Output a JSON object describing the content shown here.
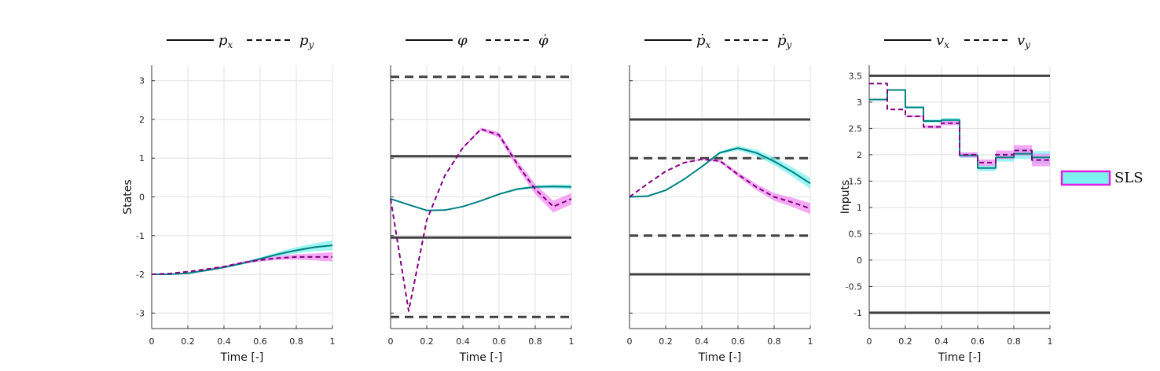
{
  "figure": {
    "band_label": "SLS",
    "colors": {
      "series_solid": "#008080",
      "series_dashed": "#800080",
      "band_solid": "#7ff0f0",
      "band_dashed": "#f28cf2",
      "constraint": "#404040",
      "legend_box_edge": "#e020e0"
    }
  },
  "chart_data": [
    {
      "type": "line",
      "legend": [
        {
          "label": "p_x",
          "style": "solid"
        },
        {
          "label": "p_y",
          "style": "dashed"
        }
      ],
      "xlabel": "Time [-]",
      "ylabel": "States",
      "xlim": [
        0,
        1
      ],
      "ylim": [
        -3.4,
        3.4
      ],
      "xticks": [
        0,
        0.2,
        0.4,
        0.6,
        0.8,
        1
      ],
      "xtick_labels": [
        "0",
        "0.2",
        "0.4",
        "0.6",
        "0.8",
        "1"
      ],
      "yticks": [
        3,
        2,
        1,
        0,
        -1,
        -2,
        -3
      ],
      "ytick_labels": [
        "3",
        "2",
        "1",
        "0",
        "-1",
        "-2",
        "-3"
      ],
      "grid": true,
      "series": [
        {
          "style": "solid",
          "x": [
            0,
            0.1,
            0.2,
            0.3,
            0.4,
            0.5,
            0.6,
            0.7,
            0.8,
            0.9,
            1.0
          ],
          "values": [
            -2.0,
            -2.0,
            -1.97,
            -1.9,
            -1.82,
            -1.72,
            -1.6,
            -1.48,
            -1.38,
            -1.3,
            -1.25
          ],
          "band": [
            0,
            0,
            0,
            0.01,
            0.02,
            0.03,
            0.04,
            0.06,
            0.08,
            0.1,
            0.13
          ]
        },
        {
          "style": "dashed",
          "x": [
            0,
            0.1,
            0.2,
            0.3,
            0.4,
            0.5,
            0.6,
            0.7,
            0.8,
            0.9,
            1.0
          ],
          "values": [
            -2.0,
            -1.98,
            -1.93,
            -1.87,
            -1.8,
            -1.7,
            -1.63,
            -1.58,
            -1.55,
            -1.55,
            -1.55
          ],
          "band": [
            0,
            0,
            0,
            0.01,
            0.02,
            0.03,
            0.04,
            0.05,
            0.07,
            0.09,
            0.12
          ]
        }
      ],
      "constraints": []
    },
    {
      "type": "line",
      "legend": [
        {
          "label": "φ",
          "style": "solid"
        },
        {
          "label": "φ̇",
          "style": "dashed"
        }
      ],
      "xlabel": "Time [-]",
      "ylabel": "",
      "xlim": [
        0,
        1
      ],
      "ylim": [
        -3.4,
        3.4
      ],
      "xticks": [
        0,
        0.2,
        0.4,
        0.6,
        0.8,
        1
      ],
      "xtick_labels": [
        "0",
        "0.2",
        "0.4",
        "0.6",
        "0.8",
        "1"
      ],
      "yticks": [
        3,
        2,
        1,
        0,
        -1,
        -2,
        -3
      ],
      "ytick_labels": [],
      "grid": true,
      "series": [
        {
          "style": "solid",
          "x": [
            0,
            0.1,
            0.2,
            0.3,
            0.4,
            0.5,
            0.6,
            0.7,
            0.8,
            0.9,
            1.0
          ],
          "values": [
            -0.05,
            -0.2,
            -0.35,
            -0.34,
            -0.25,
            -0.1,
            0.07,
            0.2,
            0.26,
            0.27,
            0.26
          ],
          "band": [
            0,
            0,
            0,
            0,
            0.01,
            0.01,
            0.02,
            0.03,
            0.04,
            0.05,
            0.06
          ]
        },
        {
          "style": "dashed",
          "x": [
            0,
            0.1,
            0.2,
            0.3,
            0.4,
            0.5,
            0.6,
            0.7,
            0.8,
            0.9,
            1.0
          ],
          "values": [
            -0.05,
            -2.95,
            -0.6,
            0.55,
            1.27,
            1.75,
            1.6,
            0.85,
            0.2,
            -0.25,
            -0.05
          ],
          "band": [
            0,
            0,
            0,
            0,
            0.02,
            0.04,
            0.07,
            0.1,
            0.13,
            0.15,
            0.15
          ]
        }
      ],
      "constraints": [
        {
          "y": 3.1,
          "style": "dashed"
        },
        {
          "y": 1.05,
          "style": "solid"
        },
        {
          "y": -1.05,
          "style": "solid"
        },
        {
          "y": -3.1,
          "style": "dashed"
        }
      ]
    },
    {
      "type": "line",
      "legend": [
        {
          "label": "ṗ_x",
          "style": "solid"
        },
        {
          "label": "ṗ_y",
          "style": "dashed"
        }
      ],
      "xlabel": "Time [-]",
      "ylabel": "",
      "xlim": [
        0,
        1
      ],
      "ylim": [
        -3.4,
        3.4
      ],
      "xticks": [
        0,
        0.2,
        0.4,
        0.6,
        0.8,
        1
      ],
      "xtick_labels": [
        "0",
        "0.2",
        "0.4",
        "0.6",
        "0.8",
        "1"
      ],
      "yticks": [
        3,
        2,
        1,
        0,
        -1,
        -2,
        -3
      ],
      "ytick_labels": [],
      "grid": true,
      "series": [
        {
          "style": "solid",
          "x": [
            0,
            0.1,
            0.2,
            0.3,
            0.4,
            0.5,
            0.6,
            0.7,
            0.8,
            0.9,
            1.0
          ],
          "values": [
            0.0,
            0.02,
            0.17,
            0.45,
            0.78,
            1.14,
            1.26,
            1.14,
            0.92,
            0.65,
            0.35
          ],
          "band": [
            0,
            0,
            0,
            0.01,
            0.02,
            0.04,
            0.06,
            0.08,
            0.1,
            0.12,
            0.14
          ]
        },
        {
          "style": "dashed",
          "x": [
            0,
            0.1,
            0.2,
            0.3,
            0.4,
            0.5,
            0.6,
            0.7,
            0.8,
            0.9,
            1.0
          ],
          "values": [
            0.0,
            0.34,
            0.66,
            0.88,
            0.97,
            0.93,
            0.58,
            0.26,
            0.0,
            -0.14,
            -0.3
          ],
          "band": [
            0,
            0,
            0,
            0.01,
            0.02,
            0.04,
            0.06,
            0.08,
            0.1,
            0.12,
            0.14
          ]
        }
      ],
      "constraints": [
        {
          "y": 2.0,
          "style": "solid"
        },
        {
          "y": 1.0,
          "style": "dashed"
        },
        {
          "y": -1.0,
          "style": "dashed"
        },
        {
          "y": -2.0,
          "style": "solid"
        }
      ]
    },
    {
      "type": "line",
      "step": true,
      "legend": [
        {
          "label": "v_x",
          "style": "solid"
        },
        {
          "label": "v_y",
          "style": "dashed"
        }
      ],
      "xlabel": "Time [-]",
      "ylabel": "Inputs",
      "xlim": [
        0,
        1
      ],
      "ylim": [
        -1.3,
        3.7
      ],
      "xticks": [
        0,
        0.2,
        0.4,
        0.6,
        0.8,
        1
      ],
      "xtick_labels": [
        "0",
        "0.2",
        "0.4",
        "0.6",
        "0.8",
        "1"
      ],
      "yticks": [
        3.5,
        3,
        2.5,
        2,
        1.5,
        1,
        0.5,
        0,
        -0.5,
        -1
      ],
      "ytick_labels": [
        "3.5",
        "3",
        "2.5",
        "2",
        "1.5",
        "1",
        "0.5",
        "0",
        "-0.5",
        "-1"
      ],
      "grid": true,
      "series": [
        {
          "style": "solid",
          "x": [
            0,
            0.1,
            0.2,
            0.3,
            0.4,
            0.5,
            0.6,
            0.7,
            0.8,
            0.9,
            1.0
          ],
          "values": [
            3.05,
            3.23,
            2.9,
            2.64,
            2.66,
            1.99,
            1.75,
            1.95,
            2.02,
            1.95,
            1.95
          ],
          "band": [
            0,
            0,
            0.02,
            0.03,
            0.04,
            0.05,
            0.06,
            0.08,
            0.1,
            0.12,
            0.12
          ]
        },
        {
          "style": "dashed",
          "x": [
            0,
            0.1,
            0.2,
            0.3,
            0.4,
            0.5,
            0.6,
            0.7,
            0.8,
            0.9,
            1.0
          ],
          "values": [
            3.35,
            2.86,
            2.73,
            2.53,
            2.6,
            2.0,
            1.85,
            2.0,
            2.08,
            1.9,
            1.9
          ],
          "band": [
            0,
            0,
            0.02,
            0.03,
            0.04,
            0.05,
            0.06,
            0.08,
            0.1,
            0.12,
            0.12
          ]
        }
      ],
      "constraints": [
        {
          "y": 3.5,
          "style": "solid"
        },
        {
          "y": -1.0,
          "style": "solid"
        }
      ]
    }
  ]
}
